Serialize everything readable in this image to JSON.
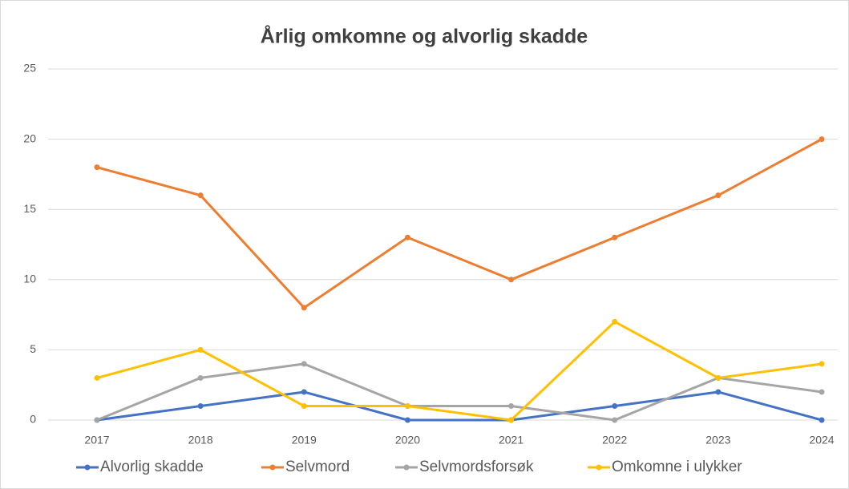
{
  "chart_data": {
    "type": "line",
    "title": "Årlig omkomne og alvorlig skadde",
    "categories": [
      "2017",
      "2018",
      "2019",
      "2020",
      "2021",
      "2022",
      "2023",
      "2024"
    ],
    "series": [
      {
        "name": "Alvorlig skadde",
        "color": "#4472c4",
        "values": [
          0,
          1,
          2,
          0,
          0,
          1,
          2,
          0
        ]
      },
      {
        "name": "Selvmord",
        "color": "#ed7d31",
        "values": [
          18,
          16,
          8,
          13,
          10,
          13,
          16,
          20
        ]
      },
      {
        "name": "Selvmordsforsøk",
        "color": "#a5a5a5",
        "values": [
          0,
          3,
          4,
          1,
          1,
          0,
          3,
          2
        ]
      },
      {
        "name": "Omkomne i ulykker",
        "color": "#ffc000",
        "values": [
          3,
          5,
          1,
          1,
          0,
          7,
          3,
          4
        ]
      }
    ],
    "ylim": [
      0,
      25
    ],
    "yticks": [
      0,
      5,
      10,
      15,
      20,
      25
    ],
    "grid": true,
    "legend": "bottom"
  }
}
